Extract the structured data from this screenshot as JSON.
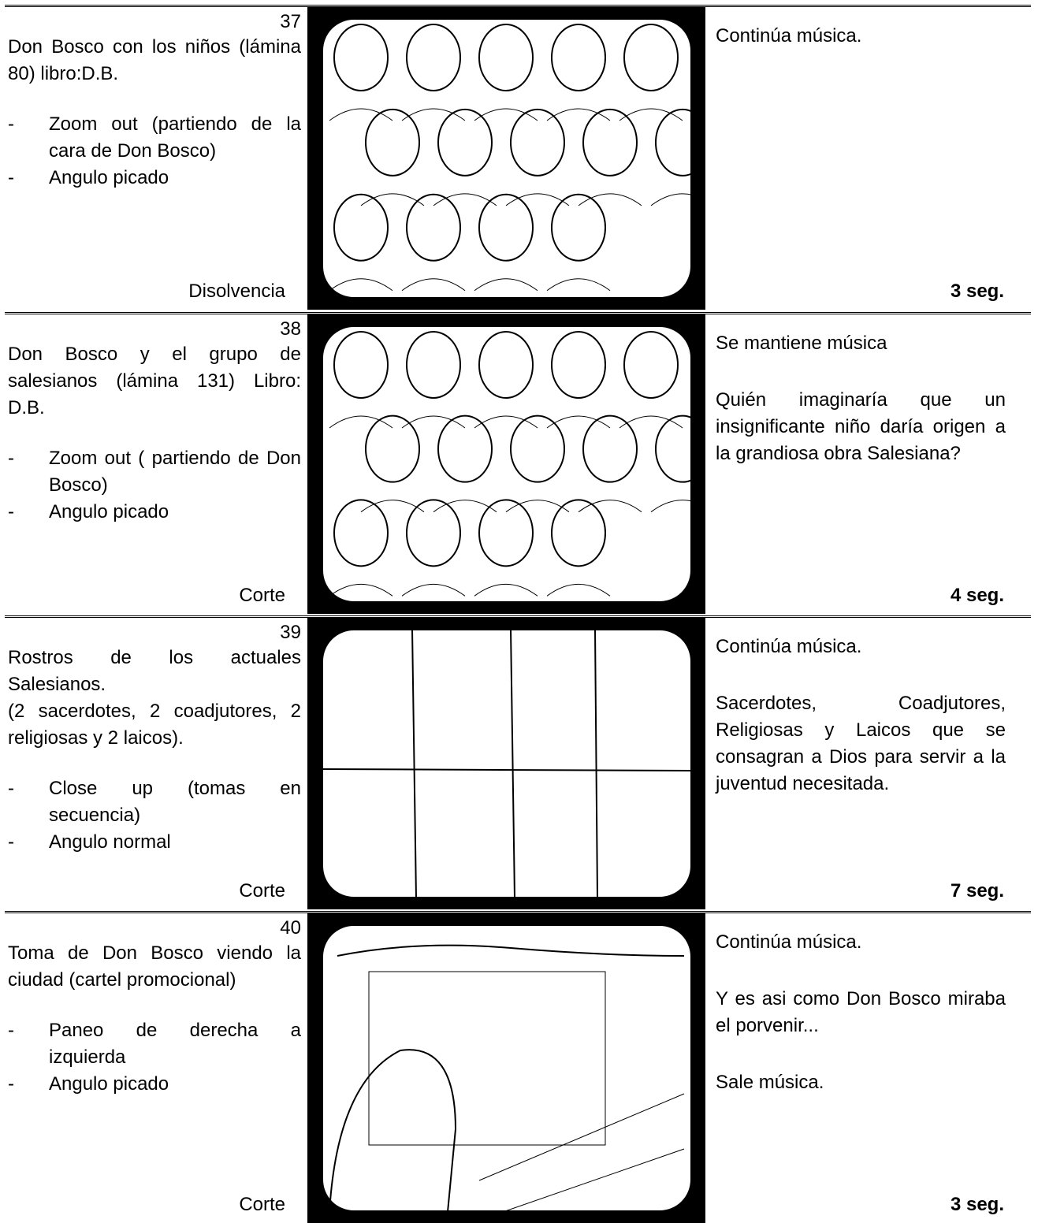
{
  "rows": [
    {
      "number": "37",
      "description": [
        "Don Bosco con los niños (lámina 80) libro:D.B."
      ],
      "directions": [
        "Zoom out (partiendo de la cara de Don Bosco)",
        "Angulo picado"
      ],
      "transition": "Disolvencia",
      "audio": [
        "Continúa música."
      ],
      "duration": "3 seg."
    },
    {
      "number": "38",
      "description": [
        "Don Bosco y el grupo de salesianos (lámina 131) Libro: D.B."
      ],
      "directions": [
        "Zoom out ( partiendo de Don Bosco)",
        "Angulo picado"
      ],
      "transition": "Corte",
      "audio": [
        "Se mantiene música",
        "Quién imaginaría que un insignificante niño daría origen a la grandiosa obra Salesiana?"
      ],
      "duration": "4 seg."
    },
    {
      "number": "39",
      "description": [
        "Rostros de los actuales Salesianos.",
        "(2 sacerdotes, 2 coadjutores, 2 religiosas y 2 laicos)."
      ],
      "directions": [
        "Close up (tomas en secuencia)",
        "Angulo normal"
      ],
      "transition": "Corte",
      "audio": [
        "Continúa música.",
        "Sacerdotes, Coadjutores, Religiosas y Laicos que se consagran a Dios para servir a la juventud necesitada."
      ],
      "duration": "7 seg."
    },
    {
      "number": "40",
      "description": [
        "Toma de Don Bosco viendo la ciudad (cartel promocional)"
      ],
      "directions": [
        "Paneo de derecha a izquierda",
        "Angulo picado"
      ],
      "transition": "Corte",
      "audio": [
        "Continúa música.",
        "Y es asi como Don Bosco miraba el porvenir...",
        "Sale música."
      ],
      "duration": "3 seg."
    }
  ]
}
